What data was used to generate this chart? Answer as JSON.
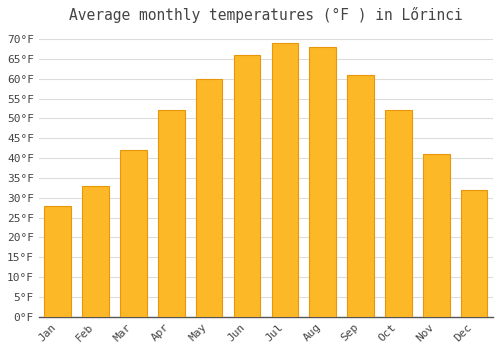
{
  "title": "Average monthly temperatures (°F ) in Lőrinci",
  "months": [
    "Jan",
    "Feb",
    "Mar",
    "Apr",
    "May",
    "Jun",
    "Jul",
    "Aug",
    "Sep",
    "Oct",
    "Nov",
    "Dec"
  ],
  "values": [
    28,
    33,
    42,
    52,
    60,
    66,
    69,
    68,
    61,
    52,
    41,
    32
  ],
  "bar_color": "#FDB827",
  "bar_edge_color": "#E8960A",
  "background_color": "#FFFFFF",
  "plot_bg_color": "#FFFFFF",
  "grid_color": "#DDDDDD",
  "text_color": "#444444",
  "ylim": [
    0,
    72
  ],
  "yticks": [
    0,
    5,
    10,
    15,
    20,
    25,
    30,
    35,
    40,
    45,
    50,
    55,
    60,
    65,
    70
  ],
  "title_fontsize": 10.5,
  "tick_fontsize": 8,
  "font_family": "monospace"
}
